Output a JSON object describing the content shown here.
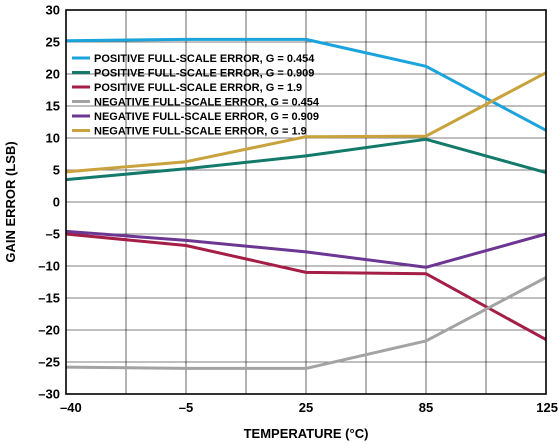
{
  "chart_data": {
    "type": "line",
    "title": "",
    "xlabel": "TEMPERATURE (°C)",
    "ylabel": "GAIN ERROR (LSB)",
    "x_categories": [
      "–40",
      "–5",
      "25",
      "85",
      "125"
    ],
    "y_ticks": [
      "30",
      "25",
      "20",
      "15",
      "10",
      "5",
      "0",
      "–5",
      "–10",
      "–15",
      "–20",
      "–25",
      "–30"
    ],
    "ylim": [
      -30,
      30
    ],
    "grid": true,
    "legend_position": "top-left",
    "series": [
      {
        "name": "POSITIVE FULL-SCALE ERROR, G = 0.454",
        "color": "#1ba3dc",
        "values": [
          25.2,
          25.4,
          25.4,
          21.2,
          11.2
        ]
      },
      {
        "name": "POSITIVE FULL-SCALE ERROR, G = 0.909",
        "color": "#137a6b",
        "values": [
          3.5,
          5.2,
          7.2,
          9.8,
          4.6
        ]
      },
      {
        "name": "POSITIVE FULL-SCALE ERROR, G = 1.9",
        "color": "#a41e48",
        "values": [
          -5.0,
          -6.8,
          -11.0,
          -11.2,
          -21.5
        ]
      },
      {
        "name": "NEGATIVE FULL-SCALE ERROR, G = 0.454",
        "color": "#a3a3a3",
        "values": [
          -25.8,
          -26.0,
          -26.0,
          -21.7,
          -11.8
        ]
      },
      {
        "name": "NEGATIVE FULL-SCALE ERROR, G = 0.909",
        "color": "#6c3693",
        "values": [
          -4.6,
          -6.0,
          -7.8,
          -10.2,
          -5.0
        ]
      },
      {
        "name": "NEGATIVE FULL-SCALE ERROR, G = 1.9",
        "color": "#c8a23c",
        "values": [
          4.7,
          6.3,
          10.2,
          10.3,
          20.2
        ]
      }
    ]
  }
}
